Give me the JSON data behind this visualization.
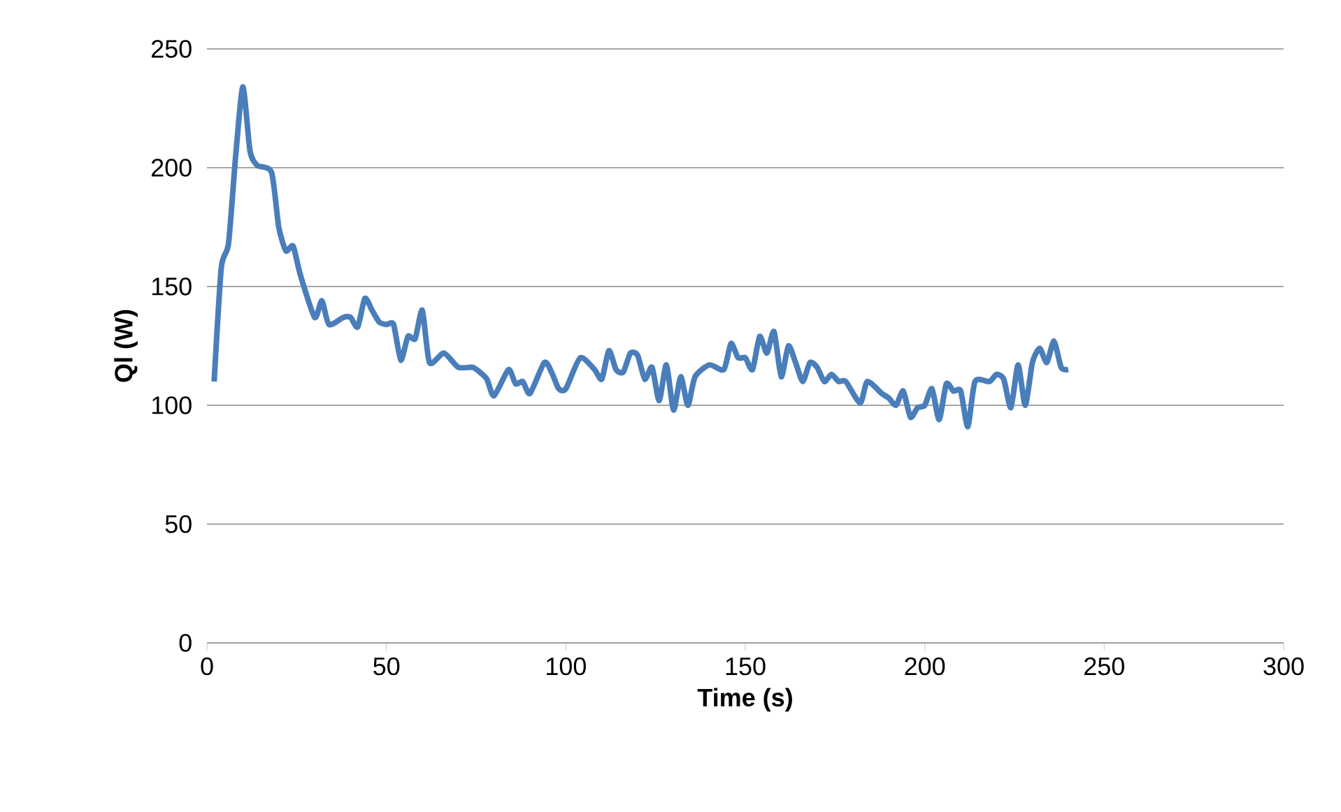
{
  "chart_data": {
    "type": "line",
    "xlabel": "Time (s)",
    "ylabel": "Ql (W)",
    "xlim": [
      0,
      300
    ],
    "ylim": [
      0,
      250
    ],
    "xticks": [
      0,
      50,
      100,
      150,
      200,
      250,
      300
    ],
    "yticks": [
      0,
      50,
      100,
      150,
      200,
      250
    ],
    "grid": "y",
    "line_style": "solid",
    "series": [
      {
        "color": "#4a7ebb",
        "x": [
          2,
          4,
          6,
          8,
          10,
          12,
          14,
          18,
          20,
          22,
          24,
          26,
          30,
          32,
          34,
          38,
          40,
          42,
          44,
          46,
          48,
          50,
          52,
          54,
          56,
          58,
          60,
          62,
          66,
          70,
          74,
          76,
          78,
          80,
          84,
          86,
          88,
          90,
          94,
          96,
          98,
          100,
          104,
          108,
          110,
          112,
          114,
          116,
          118,
          120,
          122,
          124,
          126,
          128,
          130,
          132,
          134,
          136,
          140,
          144,
          146,
          148,
          150,
          152,
          154,
          156,
          158,
          160,
          162,
          164,
          166,
          168,
          170,
          172,
          174,
          176,
          178,
          182,
          184,
          188,
          190,
          192,
          194,
          196,
          198,
          200,
          202,
          204,
          206,
          208,
          210,
          212,
          214,
          218,
          220,
          222,
          224,
          226,
          228,
          230,
          232,
          234,
          236,
          238,
          240
        ],
        "values": [
          110,
          158,
          168,
          205,
          234,
          207,
          201,
          198,
          175,
          165,
          167,
          155,
          137,
          144,
          134,
          137,
          137,
          133,
          145,
          140,
          135,
          134,
          134,
          119,
          129,
          128,
          140,
          118,
          122,
          116,
          116,
          114,
          111,
          104,
          115,
          109,
          110,
          105,
          118,
          114,
          107,
          107,
          120,
          115,
          111,
          123,
          115,
          114,
          122,
          121,
          111,
          116,
          102,
          117,
          98,
          112,
          100,
          112,
          117,
          115,
          126,
          120,
          120,
          115,
          129,
          122,
          131,
          112,
          125,
          118,
          110,
          118,
          116,
          110,
          113,
          110,
          110,
          101,
          110,
          105,
          103,
          100,
          106,
          95,
          99,
          100,
          107,
          94,
          109,
          106,
          106,
          91,
          110,
          110,
          113,
          111,
          99,
          117,
          100,
          118,
          124,
          118,
          127,
          116,
          115
        ]
      }
    ]
  }
}
